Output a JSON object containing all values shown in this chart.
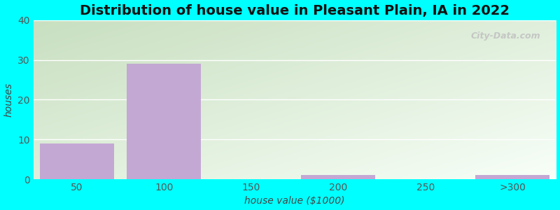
{
  "title": "Distribution of house value in Pleasant Plain, IA in 2022",
  "xlabel": "house value ($1000)",
  "ylabel": "houses",
  "categories": [
    "50",
    "100",
    "150",
    "200",
    "250",
    ">300"
  ],
  "values": [
    9,
    29,
    0,
    1,
    0,
    1
  ],
  "bar_color": "#c4a8d4",
  "ylim": [
    0,
    40
  ],
  "yticks": [
    0,
    10,
    20,
    30,
    40
  ],
  "background_color": "#00ffff",
  "grid_color": "#ffffff",
  "title_fontsize": 14,
  "label_fontsize": 10,
  "tick_fontsize": 10,
  "watermark": "City-Data.com",
  "grad_top": "#c8dfc0",
  "grad_bottom": "#f8fff5"
}
